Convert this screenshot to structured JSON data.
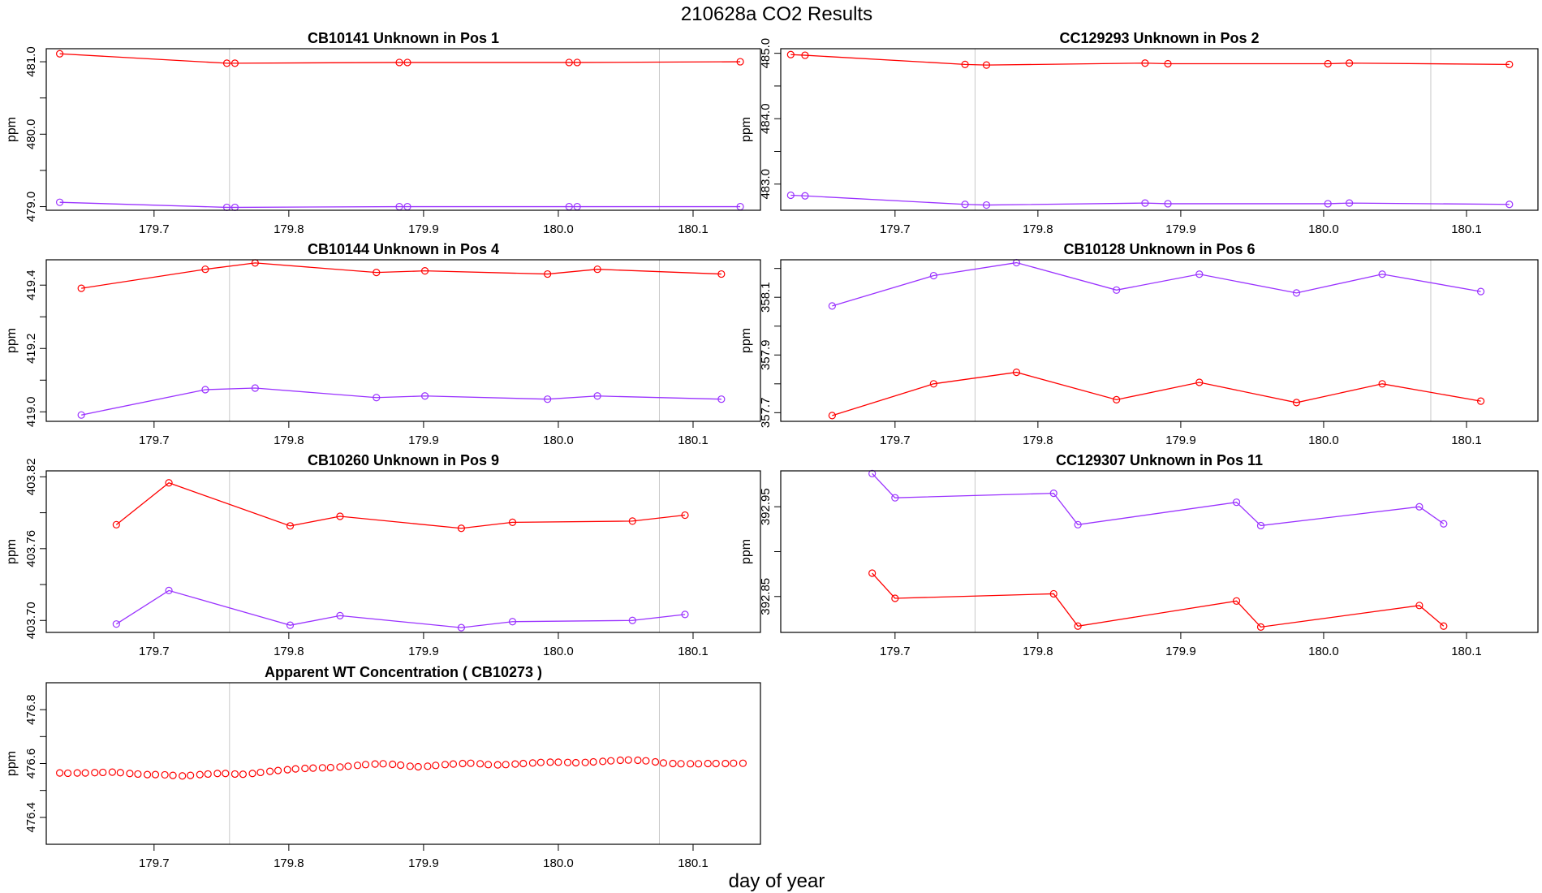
{
  "title": "210628a  CO2 Results",
  "xlabel": "day of year",
  "chart_data": [
    {
      "type": "line",
      "title": "CB10141    Unknown in Pos 1",
      "ylabel": "ppm",
      "xlim": [
        179.62,
        180.15
      ],
      "ylim": [
        478.95,
        481.18
      ],
      "xticks": [
        179.7,
        179.8,
        179.9,
        180.0,
        180.1
      ],
      "xtick_labels": [
        "179.7",
        "179.8",
        "179.9",
        "180.0",
        "180.1"
      ],
      "yticks": [
        479.0,
        480.0,
        481.0
      ],
      "ytick_labels": [
        "479.0",
        "480.0",
        "481.0"
      ],
      "yminor": [
        479.5,
        480.5
      ],
      "vlines": [
        179.756,
        180.075
      ],
      "series": [
        {
          "color": "#ff0000",
          "x": [
            179.63,
            179.754,
            179.76,
            179.882,
            179.888,
            180.008,
            180.014,
            180.135
          ],
          "y": [
            481.11,
            480.98,
            480.98,
            480.99,
            480.99,
            480.99,
            480.99,
            481.0
          ]
        },
        {
          "color": "#9a32ff",
          "x": [
            179.63,
            179.754,
            179.76,
            179.882,
            179.888,
            180.008,
            180.014,
            180.135
          ],
          "y": [
            479.06,
            478.99,
            478.99,
            479.0,
            479.0,
            479.0,
            479.0,
            479.0
          ]
        }
      ]
    },
    {
      "type": "line",
      "title": "CC129293    Unknown in Pos 2",
      "ylabel": "ppm",
      "xlim": [
        179.62,
        180.15
      ],
      "ylim": [
        482.6,
        485.07
      ],
      "xticks": [
        179.7,
        179.8,
        179.9,
        180.0,
        180.1
      ],
      "xtick_labels": [
        "179.7",
        "179.8",
        "179.9",
        "180.0",
        "180.1"
      ],
      "yticks": [
        483.0,
        484.0,
        485.0
      ],
      "ytick_labels": [
        "483.0",
        "484.0",
        "485.0"
      ],
      "yminor": [
        483.5,
        484.5
      ],
      "vlines": [
        179.756,
        180.075
      ],
      "series": [
        {
          "color": "#ff0000",
          "x": [
            179.627,
            179.637,
            179.749,
            179.764,
            179.875,
            179.891,
            180.003,
            180.018,
            180.13
          ],
          "y": [
            484.98,
            484.97,
            484.83,
            484.82,
            484.85,
            484.84,
            484.84,
            484.85,
            484.83
          ]
        },
        {
          "color": "#9a32ff",
          "x": [
            179.627,
            179.637,
            179.749,
            179.764,
            179.875,
            179.891,
            180.003,
            180.018,
            180.13
          ],
          "y": [
            482.83,
            482.82,
            482.69,
            482.68,
            482.71,
            482.7,
            482.7,
            482.71,
            482.69
          ]
        }
      ]
    },
    {
      "type": "line",
      "title": "CB10144    Unknown in Pos 4",
      "ylabel": "ppm",
      "xlim": [
        179.62,
        180.15
      ],
      "ylim": [
        418.97,
        419.48
      ],
      "xticks": [
        179.7,
        179.8,
        179.9,
        180.0,
        180.1
      ],
      "xtick_labels": [
        "179.7",
        "179.8",
        "179.9",
        "180.0",
        "180.1"
      ],
      "yticks": [
        419.0,
        419.2,
        419.4
      ],
      "ytick_labels": [
        "419.0",
        "419.2",
        "419.4"
      ],
      "yminor": [
        419.1,
        419.3
      ],
      "vlines": [
        179.756,
        180.075
      ],
      "series": [
        {
          "color": "#ff0000",
          "x": [
            179.646,
            179.738,
            179.775,
            179.865,
            179.901,
            179.992,
            180.029,
            180.121
          ],
          "y": [
            419.39,
            419.45,
            419.47,
            419.44,
            419.445,
            419.435,
            419.45,
            419.435
          ]
        },
        {
          "color": "#9a32ff",
          "x": [
            179.646,
            179.738,
            179.775,
            179.865,
            179.901,
            179.992,
            180.029,
            180.121
          ],
          "y": [
            418.99,
            419.07,
            419.075,
            419.045,
            419.05,
            419.04,
            419.05,
            419.04
          ]
        }
      ]
    },
    {
      "type": "line",
      "title": "CB10128    Unknown in Pos 6",
      "ylabel": "ppm",
      "xlim": [
        179.62,
        180.15
      ],
      "ylim": [
        357.67,
        358.23
      ],
      "xticks": [
        179.7,
        179.8,
        179.9,
        180.0,
        180.1
      ],
      "xtick_labels": [
        "179.7",
        "179.8",
        "179.9",
        "180.0",
        "180.1"
      ],
      "yticks": [
        357.7,
        357.9,
        358.1
      ],
      "ytick_labels": [
        "357.7",
        "357.9",
        "358.1"
      ],
      "yminor": [
        357.8,
        358.0,
        358.2
      ],
      "vlines": [
        179.756,
        180.075
      ],
      "series": [
        {
          "color": "#9a32ff",
          "x": [
            179.656,
            179.727,
            179.785,
            179.855,
            179.913,
            179.981,
            180.041,
            180.11
          ],
          "y": [
            358.07,
            358.175,
            358.22,
            358.125,
            358.18,
            358.115,
            358.18,
            358.12
          ]
        },
        {
          "color": "#ff0000",
          "x": [
            179.656,
            179.727,
            179.785,
            179.855,
            179.913,
            179.981,
            180.041,
            180.11
          ],
          "y": [
            357.69,
            357.8,
            357.84,
            357.745,
            357.805,
            357.735,
            357.8,
            357.74
          ]
        }
      ]
    },
    {
      "type": "line",
      "title": "CB10260    Unknown in Pos 9",
      "ylabel": "ppm",
      "xlim": [
        179.62,
        180.15
      ],
      "ylim": [
        403.69,
        403.825
      ],
      "xticks": [
        179.7,
        179.8,
        179.9,
        180.0,
        180.1
      ],
      "xtick_labels": [
        "179.7",
        "179.8",
        "179.9",
        "180.0",
        "180.1"
      ],
      "yticks": [
        403.7,
        403.76,
        403.82
      ],
      "ytick_labels": [
        "403.70",
        "403.76",
        "403.82"
      ],
      "yminor": [
        403.73,
        403.79
      ],
      "vlines": [
        179.756,
        180.075
      ],
      "series": [
        {
          "color": "#ff0000",
          "x": [
            179.672,
            179.711,
            179.801,
            179.838,
            179.928,
            179.966,
            180.055,
            180.094
          ],
          "y": [
            403.78,
            403.815,
            403.779,
            403.787,
            403.777,
            403.782,
            403.783,
            403.788
          ]
        },
        {
          "color": "#9a32ff",
          "x": [
            179.672,
            179.711,
            179.801,
            179.838,
            179.928,
            179.966,
            180.055,
            180.094
          ],
          "y": [
            403.697,
            403.725,
            403.696,
            403.704,
            403.694,
            403.699,
            403.7,
            403.705
          ]
        }
      ]
    },
    {
      "type": "line",
      "title": "CC129307    Unknown in Pos 11",
      "ylabel": "ppm",
      "xlim": [
        179.62,
        180.15
      ],
      "ylim": [
        392.81,
        392.99
      ],
      "xticks": [
        179.7,
        179.8,
        179.9,
        180.0,
        180.1
      ],
      "xtick_labels": [
        "179.7",
        "179.8",
        "179.9",
        "180.0",
        "180.1"
      ],
      "yticks": [
        392.85,
        392.95
      ],
      "ytick_labels": [
        "392.85",
        "392.95"
      ],
      "yminor": [
        392.9
      ],
      "vlines": [
        179.756
      ],
      "series": [
        {
          "color": "#9a32ff",
          "x": [
            179.684,
            179.7,
            179.811,
            179.828,
            179.939,
            179.956,
            180.067,
            180.084
          ],
          "y": [
            392.987,
            392.96,
            392.965,
            392.93,
            392.955,
            392.929,
            392.95,
            392.931
          ]
        },
        {
          "color": "#ff0000",
          "x": [
            179.684,
            179.7,
            179.811,
            179.828,
            179.939,
            179.956,
            180.067,
            180.084
          ],
          "y": [
            392.876,
            392.848,
            392.853,
            392.817,
            392.845,
            392.816,
            392.84,
            392.817
          ]
        }
      ]
    },
    {
      "type": "scatter",
      "title": "Apparent WT Concentration ( CB10273 )",
      "ylabel": "ppm",
      "xlim": [
        179.62,
        180.15
      ],
      "ylim": [
        476.3,
        476.9
      ],
      "xticks": [
        179.7,
        179.8,
        179.9,
        180.0,
        180.1
      ],
      "xtick_labels": [
        "179.7",
        "179.8",
        "179.9",
        "180.0",
        "180.1"
      ],
      "yticks": [
        476.4,
        476.6,
        476.8
      ],
      "ytick_labels": [
        "476.4",
        "476.6",
        "476.8"
      ],
      "yminor": [
        476.5,
        476.7
      ],
      "vlines": [
        179.756,
        180.075
      ],
      "series": [
        {
          "color": "#ff0000",
          "x": [
            179.63,
            179.636,
            179.643,
            179.649,
            179.656,
            179.662,
            179.669,
            179.675,
            179.682,
            179.688,
            179.695,
            179.701,
            179.708,
            179.714,
            179.721,
            179.727,
            179.734,
            179.74,
            179.747,
            179.753,
            179.76,
            179.766,
            179.773,
            179.779,
            179.786,
            179.792,
            179.799,
            179.805,
            179.812,
            179.818,
            179.825,
            179.831,
            179.838,
            179.844,
            179.851,
            179.857,
            179.864,
            179.87,
            179.877,
            179.883,
            179.89,
            179.896,
            179.903,
            179.909,
            179.916,
            179.922,
            179.929,
            179.935,
            179.942,
            179.948,
            179.955,
            179.961,
            179.968,
            179.974,
            179.981,
            179.987,
            179.994,
            180.0,
            180.007,
            180.013,
            180.02,
            180.026,
            180.033,
            180.039,
            180.046,
            180.052,
            180.059,
            180.065,
            180.072,
            180.078,
            180.085,
            180.091,
            180.098,
            180.104,
            180.111,
            180.117,
            180.124,
            180.13,
            180.137
          ],
          "y": [
            476.565,
            476.564,
            476.565,
            476.565,
            476.566,
            476.567,
            476.568,
            476.566,
            476.563,
            476.561,
            476.559,
            476.559,
            476.558,
            476.556,
            476.554,
            476.556,
            476.559,
            476.561,
            476.563,
            476.563,
            476.561,
            476.56,
            476.563,
            476.567,
            476.571,
            476.574,
            476.577,
            476.58,
            476.582,
            476.583,
            476.584,
            476.585,
            476.587,
            476.59,
            476.593,
            476.596,
            476.598,
            476.599,
            476.597,
            476.594,
            476.59,
            476.588,
            476.59,
            476.593,
            476.596,
            476.598,
            476.6,
            476.601,
            476.599,
            476.596,
            476.595,
            476.596,
            476.598,
            476.6,
            476.602,
            476.604,
            476.605,
            476.605,
            476.604,
            476.603,
            476.604,
            476.606,
            476.608,
            476.61,
            476.612,
            476.613,
            476.612,
            476.61,
            476.606,
            476.602,
            476.6,
            476.599,
            476.599,
            476.599,
            476.6,
            476.6,
            476.6,
            476.601,
            476.601
          ]
        }
      ]
    }
  ]
}
